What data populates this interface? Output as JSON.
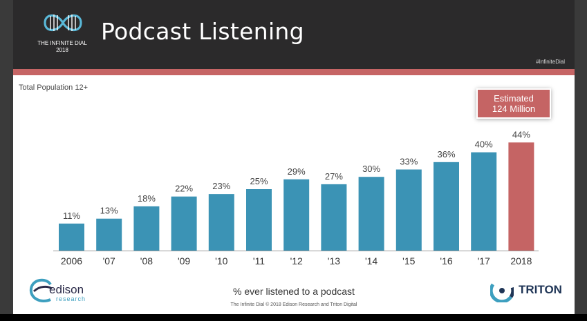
{
  "header": {
    "title": "Podcast Listening",
    "hashtag": "#InfiniteDial",
    "logo_text_line1": "THE INFINITE DIAL",
    "logo_text_line2": "2018"
  },
  "subtitle": "Total Population 12+",
  "callout": {
    "line1": "Estimated",
    "line2": "124 Million"
  },
  "caption": "% ever listened to a podcast",
  "copyright": "The Infinite Dial   © 2018 Edison Research and Triton Digital",
  "edison": {
    "name": "edison",
    "sub": "research"
  },
  "triton": {
    "name": "TRITON"
  },
  "colors": {
    "bar": "#3b93b5",
    "highlight": "#c56464",
    "header": "#2b2a2b",
    "stripe": "#c66565"
  },
  "chart_data": {
    "type": "bar",
    "categories": [
      "2006",
      "'07",
      "'08",
      "'09",
      "'10",
      "'11",
      "'12",
      "'13",
      "'14",
      "'15",
      "'16",
      "'17",
      "2018"
    ],
    "values": [
      11,
      13,
      18,
      22,
      23,
      25,
      29,
      27,
      30,
      33,
      36,
      40,
      44
    ],
    "data_labels": [
      "11%",
      "13%",
      "18%",
      "22%",
      "23%",
      "25%",
      "29%",
      "27%",
      "30%",
      "33%",
      "36%",
      "40%",
      "44%"
    ],
    "highlight_index": 12,
    "title": "Podcast Listening",
    "xlabel": "% ever listened to a podcast",
    "ylabel": "",
    "ylim": [
      0,
      50
    ],
    "grid": false,
    "legend": "none"
  }
}
